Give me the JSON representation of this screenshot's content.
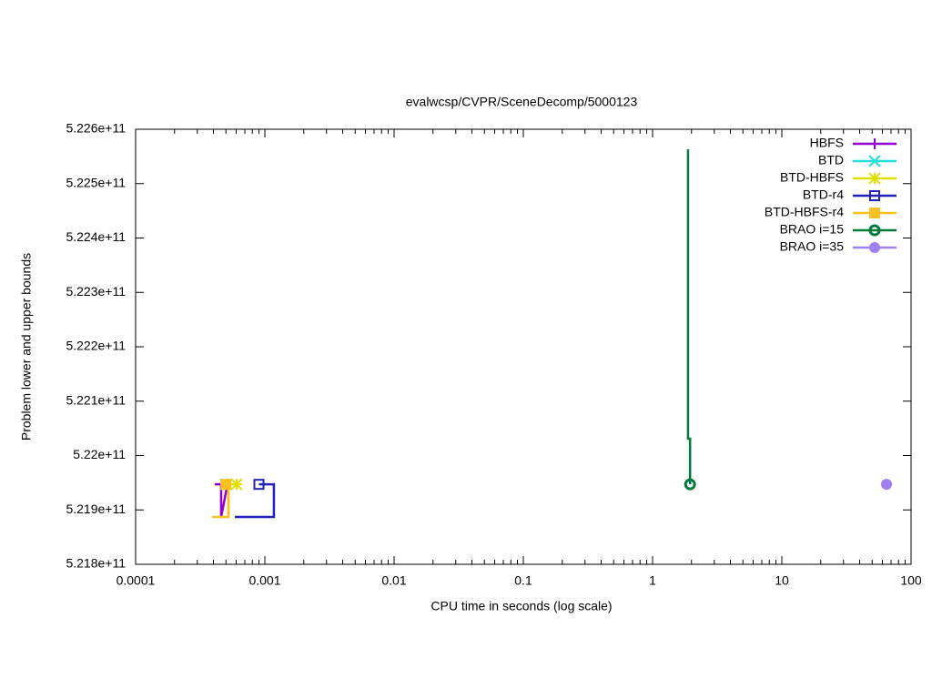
{
  "chart_data": {
    "type": "line",
    "title": "evalwcsp/CVPR/SceneDecomp/5000123",
    "x_label": "CPU time in seconds (log scale)",
    "y_label": "Problem lower and upper bounds",
    "log_x": true,
    "xlim": [
      0.0001,
      100
    ],
    "xticks": [
      0.0001,
      0.001,
      0.01,
      0.1,
      1,
      10,
      100
    ],
    "ylim": [
      521800000000,
      522600000000
    ],
    "yticks": [
      {
        "value": 521800000000,
        "label": "5.218e+11"
      },
      {
        "value": 521900000000,
        "label": "5.219e+11"
      },
      {
        "value": 522000000000,
        "label": "5.22e+11"
      },
      {
        "value": 522100000000,
        "label": "5.221e+11"
      },
      {
        "value": 522200000000,
        "label": "5.222e+11"
      },
      {
        "value": 522300000000,
        "label": "5.223e+11"
      },
      {
        "value": 522400000000,
        "label": "5.224e+11"
      },
      {
        "value": 522500000000,
        "label": "5.225e+11"
      },
      {
        "value": 522600000000,
        "label": "5.226e+11"
      }
    ],
    "legend": "top-right",
    "series": [
      {
        "name": "HBFS",
        "color": "#9400d3",
        "marker": "plus",
        "x": [
          0.00041,
          0.000459,
          0.000459,
          0.000514
        ],
        "values": [
          521947000000,
          521947000000,
          521887000000,
          521947000000
        ]
      },
      {
        "name": "BTD",
        "color": "#22dddd",
        "marker": "cross",
        "x": [
          0.0005
        ],
        "values": [
          521947000000
        ]
      },
      {
        "name": "BTD-HBFS",
        "color": "#e0e000",
        "marker": "star",
        "x": [
          0.000523,
          0.000523,
          0.000605
        ],
        "values": [
          521887000000,
          521947000000,
          521947000000
        ]
      },
      {
        "name": "BTD-r4",
        "color": "#2222bb",
        "marker": "square-open",
        "x": [
          0.000586,
          0.001175,
          0.001175,
          0.0009
        ],
        "values": [
          521887000000,
          521887000000,
          521947000000,
          521947000000
        ]
      },
      {
        "name": "BTD-HBFS-r4",
        "color": "#f8c020",
        "marker": "square",
        "x": [
          0.000391,
          0.000523,
          0.000523,
          0.0005
        ],
        "values": [
          521887000000,
          521887000000,
          521947000000,
          521947000000
        ]
      },
      {
        "name": "BRAO i=15",
        "color": "#007a3d",
        "marker": "circle-open",
        "x": [
          1.88,
          1.88,
          1.95,
          1.95
        ],
        "values": [
          522563000000,
          522031000000,
          522031000000,
          521947000000
        ]
      },
      {
        "name": "BRAO i=35",
        "color": "#a080f0",
        "marker": "circle",
        "x": [
          64.6
        ],
        "values": [
          521947000000
        ]
      }
    ]
  }
}
